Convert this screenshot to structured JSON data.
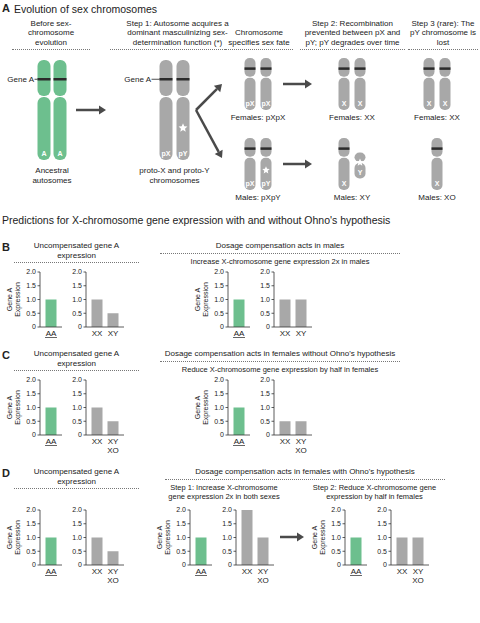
{
  "diagram": {
    "label": "A",
    "title": "Evolution of sex chromosomes",
    "stages": [
      {
        "heading": "Before sex-chromosome evolution",
        "gene_label": "Gene A",
        "chromosome_labels": [
          "A",
          "A"
        ],
        "caption": "Ancestral autosomes"
      },
      {
        "heading": "Step 1: Autosome acquires a dominant masculinizing sex-determination function (*)",
        "gene_label": "Gene A",
        "chromosome_labels": [
          "pX",
          "pY"
        ],
        "caption": "proto-X and proto-Y chromosomes"
      },
      {
        "heading": "Chromosome specifies sex fate",
        "rows": [
          {
            "chromosome_labels": [
              "pX",
              "pX"
            ],
            "caption": "Females: pXpX"
          },
          {
            "chromosome_labels": [
              "pX",
              "pY"
            ],
            "caption": "Males: pXpY"
          }
        ]
      },
      {
        "heading": "Step 2: Recombination prevented between pX and pY; pY degrades over time",
        "rows": [
          {
            "chromosome_labels": [
              "X",
              "X"
            ],
            "caption": "Females: XX"
          },
          {
            "chromosome_labels": [
              "X",
              "Y"
            ],
            "caption": "Males: XY"
          }
        ]
      },
      {
        "heading": "Step 3 (rare): The pY chromosome is lost",
        "rows": [
          {
            "chromosome_labels": [
              "X",
              "X"
            ],
            "caption": "Females: XX"
          },
          {
            "chromosome_labels": [
              "X"
            ],
            "caption": "Males: XO"
          }
        ]
      }
    ]
  },
  "section_title": "Predictions for X-chromosome gene expression with and without Ohno's hypothesis",
  "panels": [
    {
      "label": "B",
      "groups": [
        {
          "heading": "Uncompensated gene A expression"
        },
        {
          "heading": "Dosage compensation acts in males",
          "subheadings": [
            "Increase X-chromosome gene expression 2x in males"
          ]
        }
      ]
    },
    {
      "label": "C",
      "groups": [
        {
          "heading": "Uncompensated gene A expression"
        },
        {
          "heading": "Dosage compensation acts in females without Ohno's hypothesis",
          "subheadings": [
            "Reduce X-chromosome gene expression by half in females"
          ]
        }
      ]
    },
    {
      "label": "D",
      "groups": [
        {
          "heading": "Uncompensated gene A expression"
        },
        {
          "heading": "Dosage compensation acts in females with Ohno's hypothesis",
          "subheadings": [
            "Step 1: Increase X-chromosome gene expression 2x in both sexes",
            "Step 2: Reduce X-chromosome gene expression by half in females"
          ]
        }
      ]
    }
  ],
  "chart_data": [
    {
      "type": "bar",
      "ylabel": "Gene A Expression",
      "categories": [
        "AA"
      ],
      "values": [
        1.0
      ],
      "color": "#6dbf8e",
      "ylim": [
        0,
        2
      ],
      "yticks": [
        0,
        0.5,
        {
          "value": 1,
          "label": "1.0"
        },
        1.5,
        {
          "value": 2,
          "label": "2.0"
        }
      ]
    },
    {
      "type": "bar",
      "categories": [
        "XX",
        "XY"
      ],
      "values": [
        1.0,
        0.5
      ],
      "color": "#a8a8a8",
      "ylim": [
        0,
        2
      ],
      "yticks": [
        0,
        0.5,
        {
          "value": 1,
          "label": "1.0"
        },
        1.5,
        {
          "value": 2,
          "label": "2.0"
        }
      ]
    },
    {
      "type": "bar",
      "ylabel": "Gene A Expression",
      "categories": [
        "AA"
      ],
      "values": [
        1.0
      ],
      "color": "#6dbf8e",
      "ylim": [
        0,
        2
      ],
      "yticks": [
        0,
        0.5,
        {
          "value": 1,
          "label": "1.0"
        },
        1.5,
        {
          "value": 2,
          "label": "2.0"
        }
      ]
    },
    {
      "type": "bar",
      "categories": [
        "XX",
        "XY"
      ],
      "values": [
        1.0,
        1.0
      ],
      "color": "#a8a8a8",
      "ylim": [
        0,
        2
      ],
      "yticks": [
        0,
        0.5,
        {
          "value": 1,
          "label": "1.0"
        },
        1.5,
        {
          "value": 2,
          "label": "2.0"
        }
      ]
    },
    {
      "type": "bar",
      "ylabel": "Gene A Expression",
      "categories": [
        "AA"
      ],
      "values": [
        1.0
      ],
      "color": "#6dbf8e",
      "ylim": [
        0,
        2
      ],
      "yticks": [
        0,
        0.5,
        {
          "value": 1,
          "label": "1.0"
        },
        1.5,
        {
          "value": 2,
          "label": "2.0"
        }
      ]
    },
    {
      "type": "bar",
      "categories": [
        "XX",
        "XY\nXO"
      ],
      "values": [
        1.0,
        0.5
      ],
      "color": "#a8a8a8",
      "ylim": [
        0,
        2
      ],
      "yticks": [
        0,
        0.5,
        {
          "value": 1,
          "label": "1.0"
        },
        1.5,
        {
          "value": 2,
          "label": "2.0"
        }
      ]
    },
    {
      "type": "bar",
      "ylabel": "Gene A Expression",
      "categories": [
        "AA"
      ],
      "values": [
        1.0
      ],
      "color": "#6dbf8e",
      "ylim": [
        0,
        2
      ],
      "yticks": [
        0,
        0.5,
        {
          "value": 1,
          "label": "1.0"
        },
        1.5,
        {
          "value": 2,
          "label": "2.0"
        }
      ]
    },
    {
      "type": "bar",
      "categories": [
        "XX",
        "XY\nXO"
      ],
      "values": [
        0.5,
        0.5
      ],
      "color": "#a8a8a8",
      "ylim": [
        0,
        2
      ],
      "yticks": [
        0,
        0.5,
        {
          "value": 1,
          "label": "1.0"
        },
        1.5,
        {
          "value": 2,
          "label": "2.0"
        }
      ]
    },
    {
      "type": "bar",
      "ylabel": "Gene A Expression",
      "categories": [
        "AA"
      ],
      "values": [
        1.0
      ],
      "color": "#6dbf8e",
      "ylim": [
        0,
        2
      ],
      "yticks": [
        0,
        0.5,
        {
          "value": 1,
          "label": "1.0"
        },
        1.5,
        {
          "value": 2,
          "label": "2.0"
        }
      ]
    },
    {
      "type": "bar",
      "categories": [
        "XX",
        "XY\nXO"
      ],
      "values": [
        1.0,
        0.5
      ],
      "color": "#a8a8a8",
      "ylim": [
        0,
        2
      ],
      "yticks": [
        0,
        0.5,
        {
          "value": 1,
          "label": "1.0"
        },
        1.5,
        {
          "value": 2,
          "label": "2.0"
        }
      ]
    },
    {
      "type": "bar",
      "ylabel": "Gene A Expression",
      "categories": [
        "AA"
      ],
      "values": [
        1.0
      ],
      "color": "#6dbf8e",
      "ylim": [
        0,
        2
      ],
      "yticks": [
        0,
        0.5,
        {
          "value": 1,
          "label": "1.0"
        },
        1.5,
        {
          "value": 2,
          "label": "2.0"
        }
      ]
    },
    {
      "type": "bar",
      "categories": [
        "XX",
        "XY\nXO"
      ],
      "values": [
        2.0,
        1.0
      ],
      "color": "#a8a8a8",
      "ylim": [
        0,
        2
      ],
      "yticks": [
        0,
        0.5,
        {
          "value": 1,
          "label": "1.0"
        },
        1.5,
        {
          "value": 2,
          "label": "2.0"
        }
      ]
    },
    {
      "type": "bar",
      "ylabel": "Gene A Expression",
      "categories": [
        "AA"
      ],
      "values": [
        1.0
      ],
      "color": "#6dbf8e",
      "ylim": [
        0,
        2
      ],
      "yticks": [
        0,
        0.5,
        {
          "value": 1,
          "label": "1.0"
        },
        1.5,
        {
          "value": 2,
          "label": "2.0"
        }
      ]
    },
    {
      "type": "bar",
      "categories": [
        "XX",
        "XY\nXO"
      ],
      "values": [
        1.0,
        1.0
      ],
      "color": "#a8a8a8",
      "ylim": [
        0,
        2
      ],
      "yticks": [
        0,
        0.5,
        {
          "value": 1,
          "label": "1.0"
        },
        1.5,
        {
          "value": 2,
          "label": "2.0"
        }
      ]
    }
  ]
}
